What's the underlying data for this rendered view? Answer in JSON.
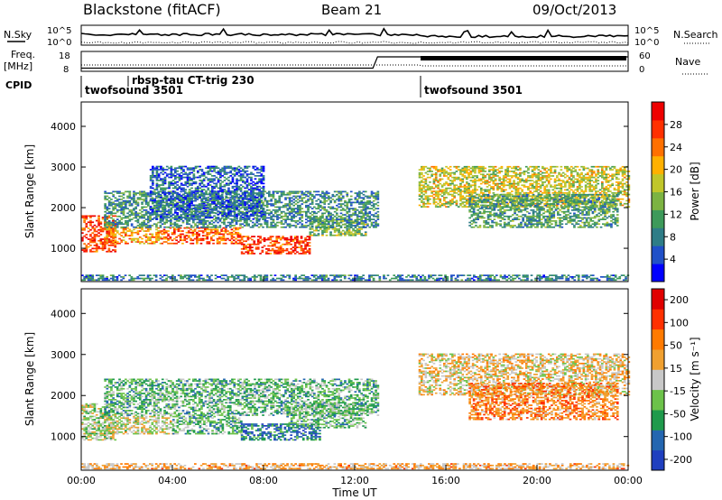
{
  "header": {
    "station": "Blackstone (fitACF)",
    "beam": "Beam 21",
    "date": "09/Oct/2013"
  },
  "params": {
    "nsky_label": "N.Sky",
    "nsearch_label": "N.Search",
    "noise_ticks": [
      "10^5",
      "10^0"
    ],
    "freq_label_1": "Freq.",
    "freq_label_2": "[MHz]",
    "freq_ticks": [
      "18",
      "8"
    ],
    "nave_label": "Nave",
    "nave_ticks": [
      "60",
      "0"
    ],
    "cpid_label": "CPID",
    "cpid_segments": [
      {
        "label": "twofsound 3501",
        "start_h": 0.0,
        "end_h": 14.8
      },
      {
        "label": "rbsp-tau CT-trig 230",
        "start_h": 1.8,
        "end_h": 14.8
      },
      {
        "label": "twofsound 3501",
        "start_h": 14.8,
        "end_h": 24.0
      }
    ]
  },
  "chart_data": [
    {
      "type": "heatmap",
      "name": "power",
      "xlabel": "",
      "ylabel": "Slant Range [km]",
      "xlim": [
        0,
        24
      ],
      "ylim": [
        180,
        4600
      ],
      "yticks": [
        1000,
        2000,
        3000,
        4000
      ],
      "colorbar": {
        "label": "Power [dB]",
        "ticks": [
          4,
          8,
          12,
          16,
          20,
          24,
          28
        ],
        "range": [
          0,
          32
        ],
        "colors": [
          "#0000ff",
          "#2050c8",
          "#2e7d87",
          "#3d9a5a",
          "#7cb342",
          "#c0c62a",
          "#ffb000",
          "#ff7000",
          "#ff3000",
          "#ee0000"
        ]
      },
      "bands": [
        {
          "t0": 0.0,
          "t1": 1.5,
          "r0": 900,
          "r1": 1800,
          "level": 0.85
        },
        {
          "t0": 1.0,
          "t1": 3.5,
          "r0": 1100,
          "r1": 1500,
          "level": 0.7
        },
        {
          "t0": 3.5,
          "t1": 7.0,
          "r0": 1100,
          "r1": 1500,
          "level": 0.8
        },
        {
          "t0": 7.0,
          "t1": 10.0,
          "r0": 850,
          "r1": 1300,
          "level": 0.85
        },
        {
          "t0": 10.0,
          "t1": 12.5,
          "r0": 1300,
          "r1": 1700,
          "level": 0.45
        },
        {
          "t0": 1.0,
          "t1": 13.0,
          "r0": 1500,
          "r1": 2400,
          "level": 0.3
        },
        {
          "t0": 3.0,
          "t1": 8.0,
          "r0": 1700,
          "r1": 3000,
          "level": 0.2
        },
        {
          "t0": 14.8,
          "t1": 24.0,
          "r0": 2000,
          "r1": 3000,
          "level": 0.55
        },
        {
          "t0": 17.0,
          "t1": 23.5,
          "r0": 1500,
          "r1": 2300,
          "level": 0.35
        },
        {
          "t0": 0.0,
          "t1": 24.0,
          "r0": 200,
          "r1": 320,
          "level": 0.25
        }
      ]
    },
    {
      "type": "heatmap",
      "name": "velocity",
      "xlabel": "Time UT",
      "ylabel": "Slant Range [km]",
      "xlim": [
        0,
        24
      ],
      "ylim": [
        180,
        4600
      ],
      "yticks": [
        1000,
        2000,
        3000,
        4000
      ],
      "xticks": [
        "00:00",
        "04:00",
        "08:00",
        "12:00",
        "16:00",
        "20:00",
        "00:00"
      ],
      "colorbar": {
        "label": "Velocity [m s⁻¹]",
        "ticks": [
          "200",
          "100",
          "50",
          "15",
          "-15",
          "-50",
          "-100",
          "-200"
        ],
        "colors": [
          "#1f3fbf",
          "#2466b0",
          "#1f9a4c",
          "#6cc24a",
          "#c8c8c8",
          "#f0a030",
          "#ff7a00",
          "#ff3000",
          "#e00000"
        ]
      },
      "bands": [
        {
          "t0": 0.0,
          "t1": 1.5,
          "r0": 900,
          "r1": 1800,
          "level": 0.45
        },
        {
          "t0": 1.0,
          "t1": 4.0,
          "r0": 1050,
          "r1": 1500,
          "level": 0.5
        },
        {
          "t0": 4.0,
          "t1": 7.0,
          "r0": 1050,
          "r1": 1500,
          "level": 0.35
        },
        {
          "t0": 7.0,
          "t1": 10.5,
          "r0": 900,
          "r1": 1300,
          "level": 0.2
        },
        {
          "t0": 9.0,
          "t1": 12.5,
          "r0": 1200,
          "r1": 1800,
          "level": 0.35
        },
        {
          "t0": 1.0,
          "t1": 13.0,
          "r0": 1500,
          "r1": 2400,
          "level": 0.35
        },
        {
          "t0": 14.8,
          "t1": 24.0,
          "r0": 2000,
          "r1": 3000,
          "level": 0.55
        },
        {
          "t0": 17.0,
          "t1": 23.5,
          "r0": 1400,
          "r1": 2300,
          "level": 0.7
        },
        {
          "t0": 0.0,
          "t1": 24.0,
          "r0": 200,
          "r1": 320,
          "level": 0.62
        }
      ]
    }
  ]
}
